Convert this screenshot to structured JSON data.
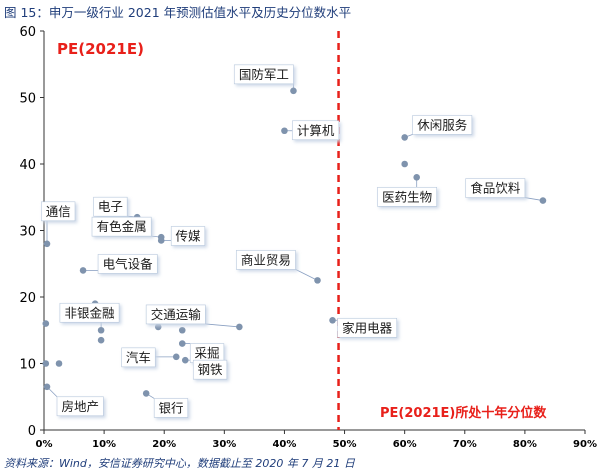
{
  "figure": {
    "title": "图 15：申万一级行业 2021 年预测估值水平及历史分位数水平",
    "source": "资料来源：Wind，安信证券研究中心，数据截止至 2020 年 7 月 21 日"
  },
  "colors": {
    "point": "#7f93ad",
    "reference_line": "#e8201a",
    "label_box_shadow": "#dde6f2"
  },
  "chart_data": {
    "type": "scatter",
    "title": "PE(2021E)",
    "xlabel": "PE(2021E)所处十年分位数",
    "ylabel": "",
    "xlim": [
      0,
      0.9
    ],
    "ylim": [
      0,
      60
    ],
    "x_ticks": [
      "0%",
      "10%",
      "20%",
      "30%",
      "40%",
      "50%",
      "60%",
      "70%",
      "80%",
      "90%"
    ],
    "y_ticks": [
      "0",
      "10",
      "20",
      "30",
      "40",
      "50",
      "60"
    ],
    "grid": false,
    "reference_line": {
      "x": 0.49,
      "style": "dashed"
    },
    "points": [
      {
        "name": "国防军工",
        "x": 0.415,
        "y": 51
      },
      {
        "name": "计算机",
        "x": 0.4,
        "y": 45
      },
      {
        "name": "休闲服务",
        "x": 0.6,
        "y": 44
      },
      {
        "name": "食品饮料",
        "x": 0.83,
        "y": 34.5
      },
      {
        "name": "医药生物",
        "x": 0.62,
        "y": 38
      },
      {
        "name": "",
        "x": 0.6,
        "y": 40
      },
      {
        "name": "电子",
        "x": 0.155,
        "y": 32
      },
      {
        "name": "有色金属",
        "x": 0.195,
        "y": 29
      },
      {
        "name": "传媒",
        "x": 0.195,
        "y": 28.5
      },
      {
        "name": "通信",
        "x": 0.005,
        "y": 28
      },
      {
        "name": "电气设备",
        "x": 0.065,
        "y": 24
      },
      {
        "name": "商业贸易",
        "x": 0.455,
        "y": 22.5
      },
      {
        "name": "",
        "x": 0.085,
        "y": 19
      },
      {
        "name": "",
        "x": 0.035,
        "y": 18.5
      },
      {
        "name": "非银金融",
        "x": 0.095,
        "y": 15
      },
      {
        "name": "",
        "x": 0.095,
        "y": 13.5
      },
      {
        "name": "",
        "x": 0.003,
        "y": 16
      },
      {
        "name": "交通运输",
        "x": 0.325,
        "y": 15.5
      },
      {
        "name": "家用电器",
        "x": 0.48,
        "y": 16.5
      },
      {
        "name": "",
        "x": 0.23,
        "y": 15
      },
      {
        "name": "",
        "x": 0.19,
        "y": 15.5
      },
      {
        "name": "采掘",
        "x": 0.23,
        "y": 13
      },
      {
        "name": "汽车",
        "x": 0.22,
        "y": 11
      },
      {
        "name": "钢铁",
        "x": 0.235,
        "y": 10.5
      },
      {
        "name": "",
        "x": 0.003,
        "y": 10
      },
      {
        "name": "",
        "x": 0.025,
        "y": 10
      },
      {
        "name": "房地产",
        "x": 0.005,
        "y": 6.5
      },
      {
        "name": "银行",
        "x": 0.17,
        "y": 5.5
      }
    ]
  }
}
